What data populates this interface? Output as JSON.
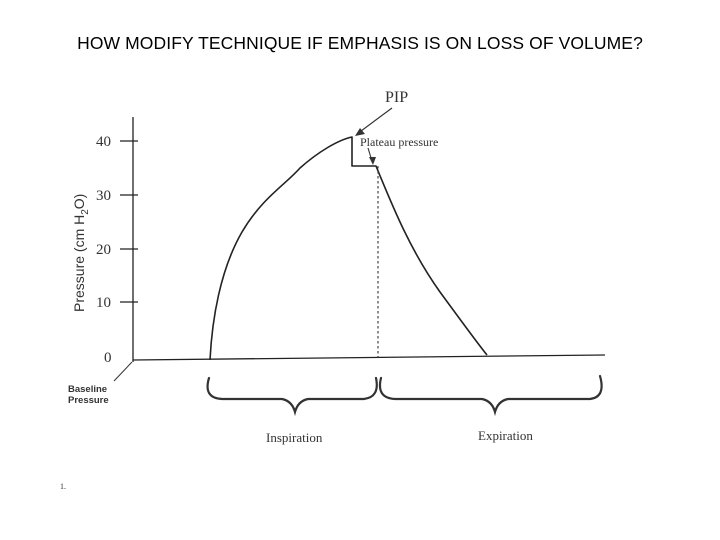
{
  "slide": {
    "title": "HOW MODIFY TECHNIQUE IF EMPHASIS IS ON LOSS OF VOLUME?",
    "footnote": "1."
  },
  "diagram": {
    "y_axis_label": "Pressure (cm H2O)",
    "y_axis_label_parts": {
      "base": "Pressure (cm H",
      "sub": "2",
      "end": "O)"
    },
    "ticks": [
      "40",
      "30",
      "20",
      "10",
      "0"
    ],
    "annotations": {
      "pip": "PIP",
      "plateau": "Plateau pressure",
      "baseline": "Baseline",
      "baseline_2": "Pressure"
    },
    "phases": {
      "inspiration": "Inspiration",
      "expiration": "Expiration"
    }
  }
}
